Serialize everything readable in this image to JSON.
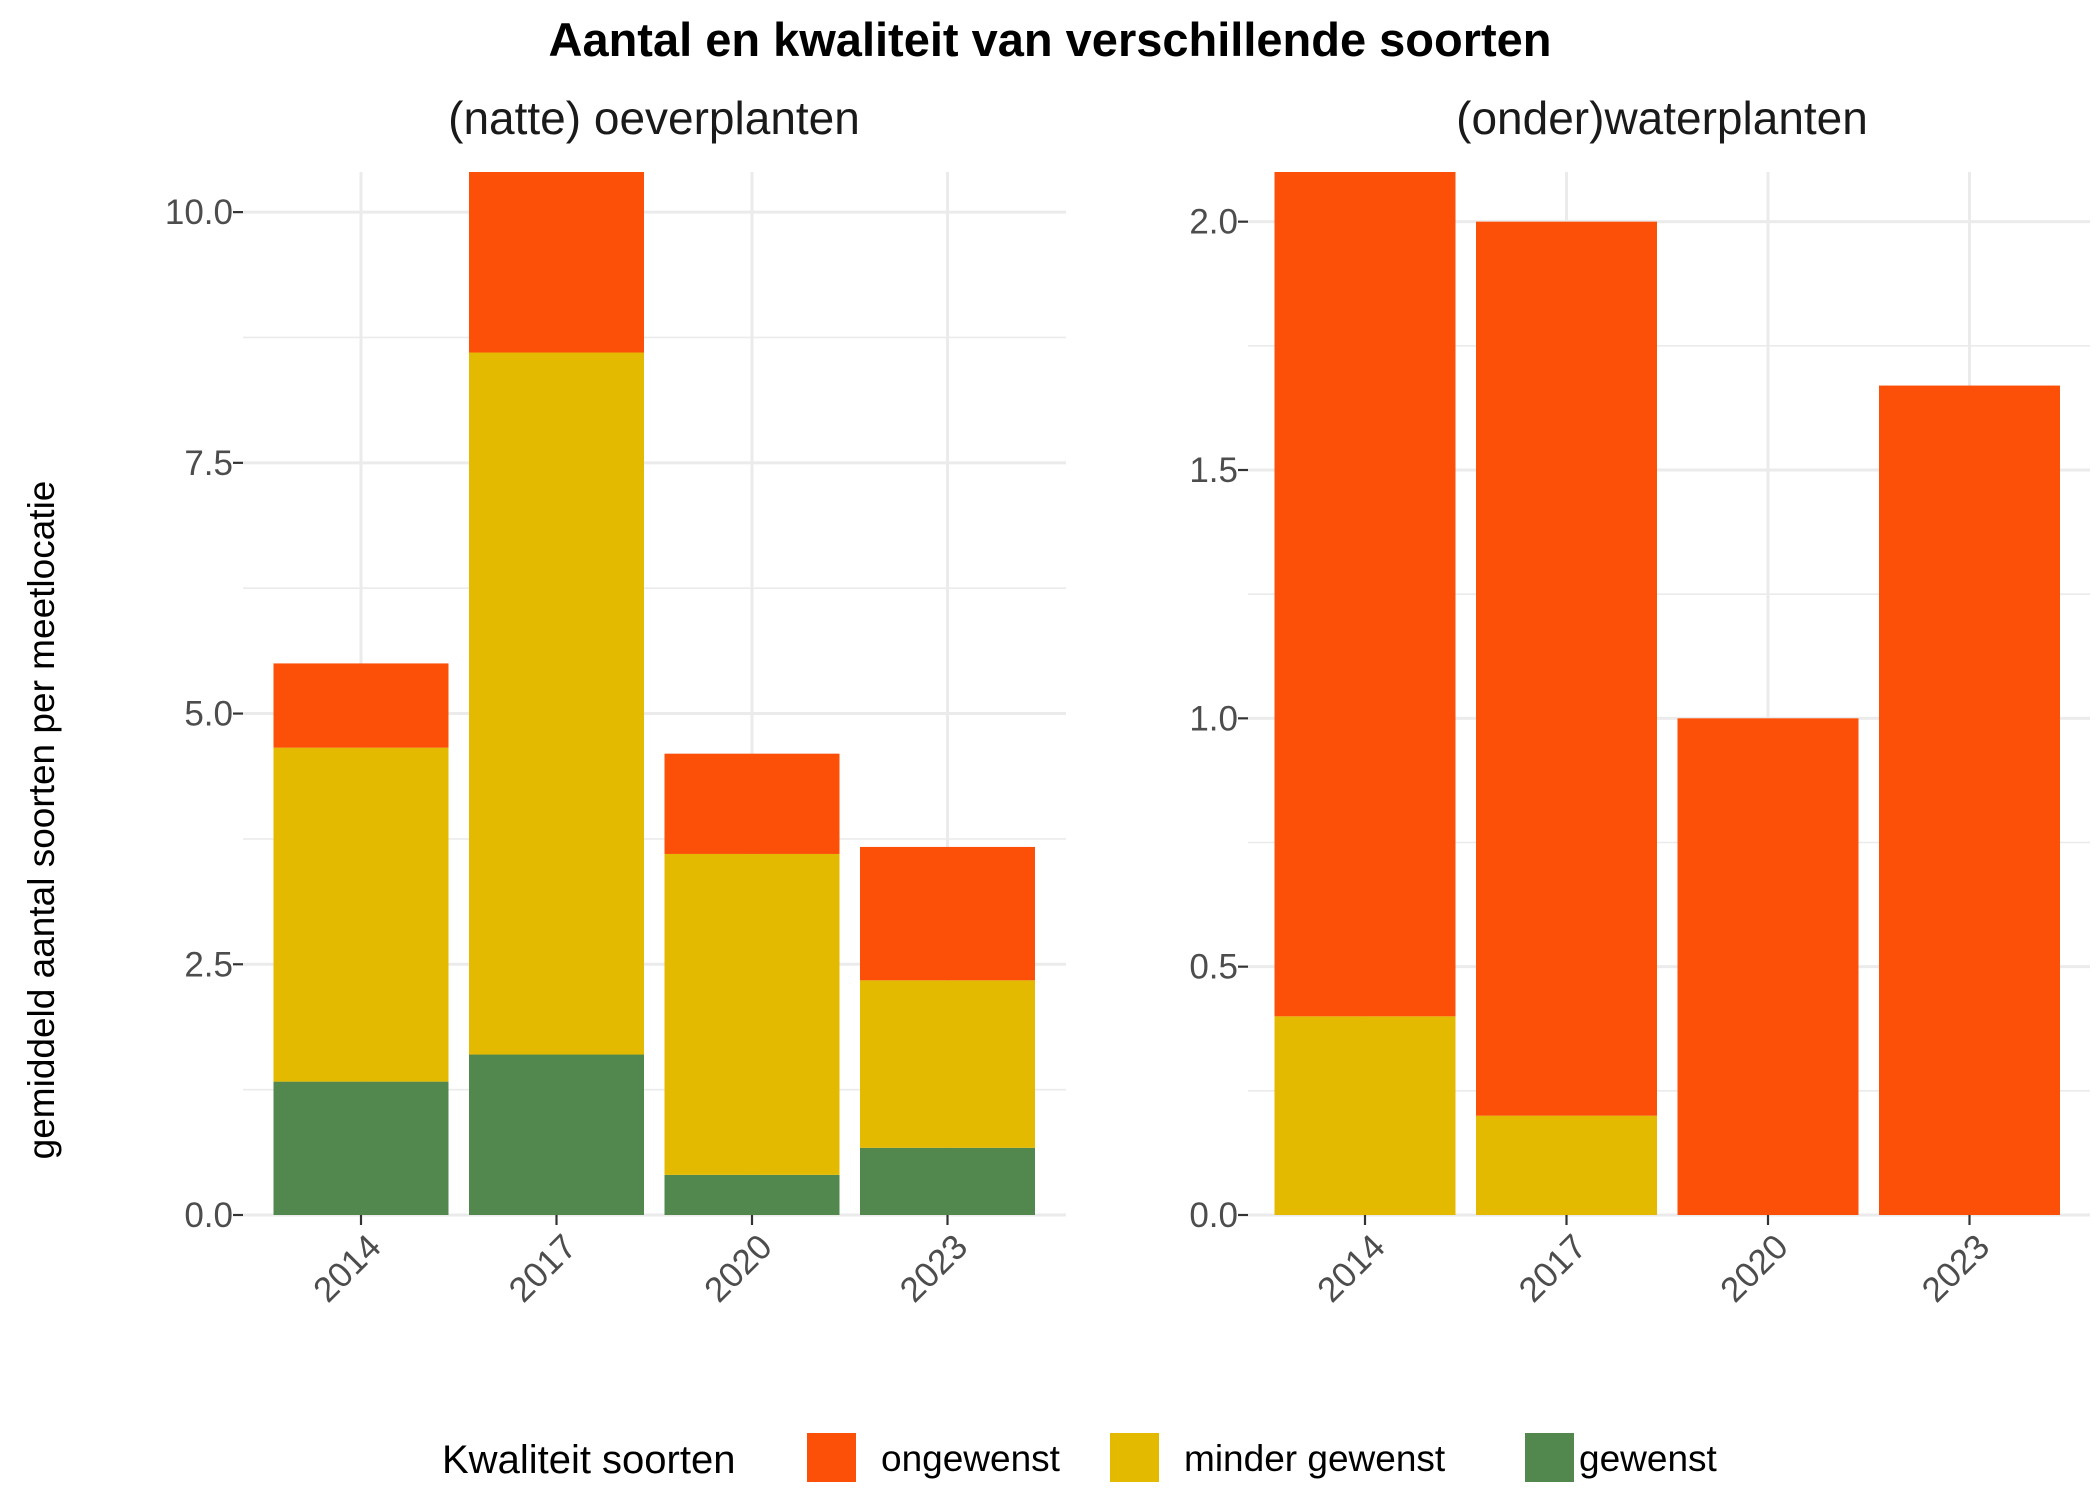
{
  "title": "Aantal en kwaliteit van verschillende soorten",
  "ylabel": "gemiddeld aantal soorten per meetlocatie",
  "legend": {
    "title": "Kwaliteit soorten",
    "items": [
      {
        "label": "ongewenst",
        "color": "#FC4F07"
      },
      {
        "label": "minder gewenst",
        "color": "#E4BA00"
      },
      {
        "label": "gewenst",
        "color": "#52874E"
      }
    ]
  },
  "chart_data": [
    {
      "type": "bar",
      "stacked": true,
      "title": "(natte) oeverplanten",
      "categories": [
        "2014",
        "2017",
        "2020",
        "2023"
      ],
      "ylim": [
        0,
        10.4
      ],
      "yticks": [
        "0.0",
        "2.5",
        "5.0",
        "7.5",
        "10.0"
      ],
      "ytick_values": [
        0,
        2.5,
        5,
        7.5,
        10
      ],
      "series": [
        {
          "name": "gewenst",
          "color": "#52874E",
          "values": [
            1.33,
            1.6,
            0.4,
            0.67
          ]
        },
        {
          "name": "minder gewenst",
          "color": "#E4BA00",
          "values": [
            3.33,
            7.0,
            3.2,
            1.67
          ]
        },
        {
          "name": "ongewenst",
          "color": "#FC4F07",
          "values": [
            0.84,
            1.8,
            1.0,
            1.33
          ]
        }
      ]
    },
    {
      "type": "bar",
      "stacked": true,
      "title": "(onder)waterplanten",
      "categories": [
        "2014",
        "2017",
        "2020",
        "2023"
      ],
      "ylim": [
        0,
        2.1
      ],
      "yticks": [
        "0.0",
        "0.5",
        "1.0",
        "1.5",
        "2.0"
      ],
      "ytick_values": [
        0,
        0.5,
        1,
        1.5,
        2
      ],
      "series": [
        {
          "name": "gewenst",
          "color": "#52874E",
          "values": [
            0,
            0,
            0,
            0
          ]
        },
        {
          "name": "minder gewenst",
          "color": "#E4BA00",
          "values": [
            0.4,
            0.2,
            0,
            0
          ]
        },
        {
          "name": "ongewenst",
          "color": "#FC4F07",
          "values": [
            1.7,
            1.8,
            1.0,
            1.67
          ]
        }
      ]
    }
  ]
}
